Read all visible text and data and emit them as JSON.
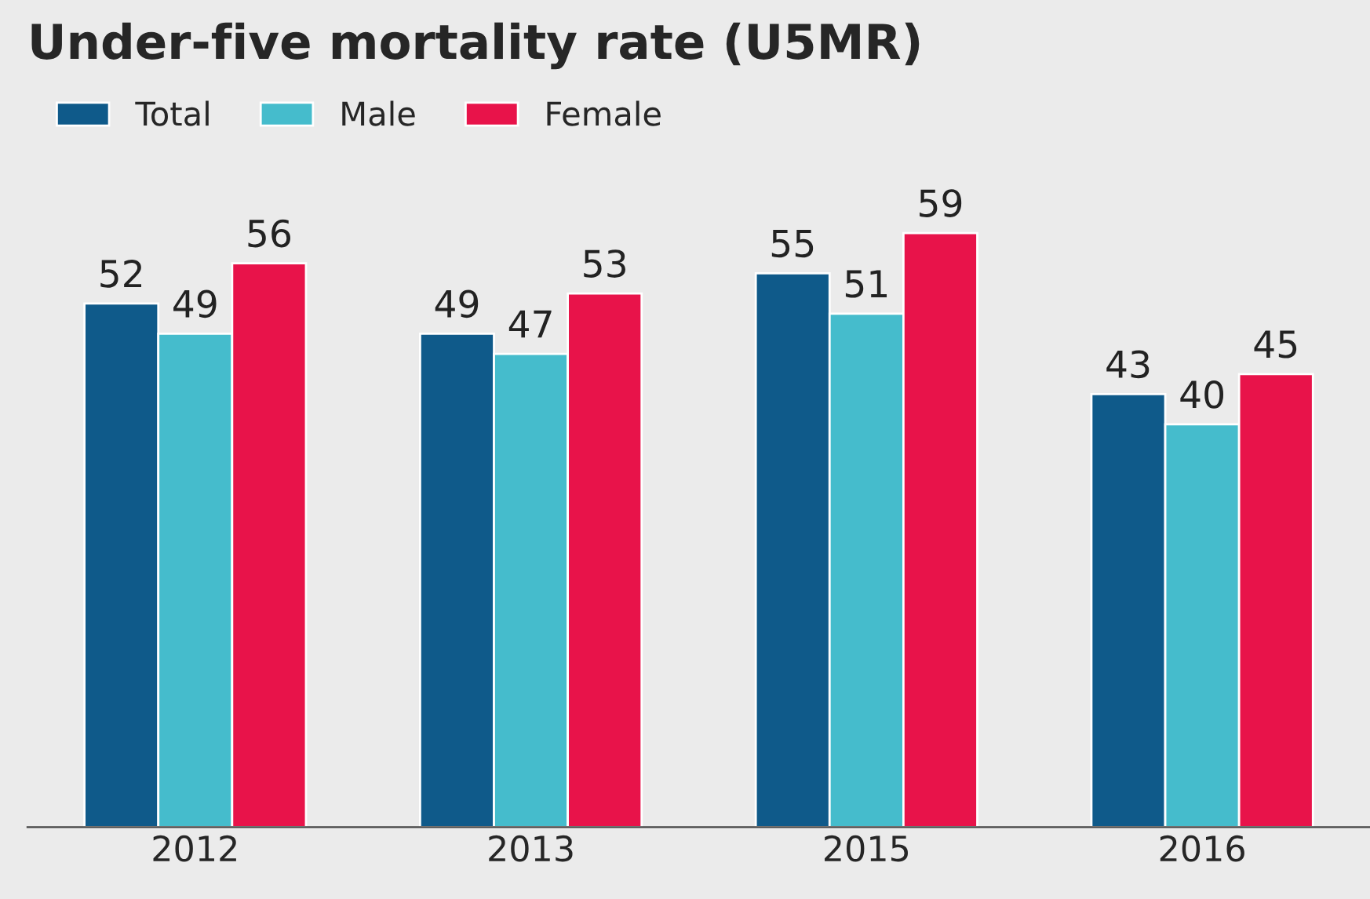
{
  "chart_data": {
    "type": "bar",
    "title": "Under-five mortality rate (U5MR)",
    "categories": [
      "2012",
      "2013",
      "2015",
      "2016"
    ],
    "series": [
      {
        "name": "Total",
        "color": "#0f5a8a",
        "values": [
          52,
          49,
          55,
          43
        ]
      },
      {
        "name": "Male",
        "color": "#45bccc",
        "values": [
          49,
          47,
          51,
          40
        ]
      },
      {
        "name": "Female",
        "color": "#e8134a",
        "values": [
          56,
          53,
          59,
          45
        ]
      }
    ],
    "data_labels": true,
    "legend": "top left",
    "grid": false
  }
}
